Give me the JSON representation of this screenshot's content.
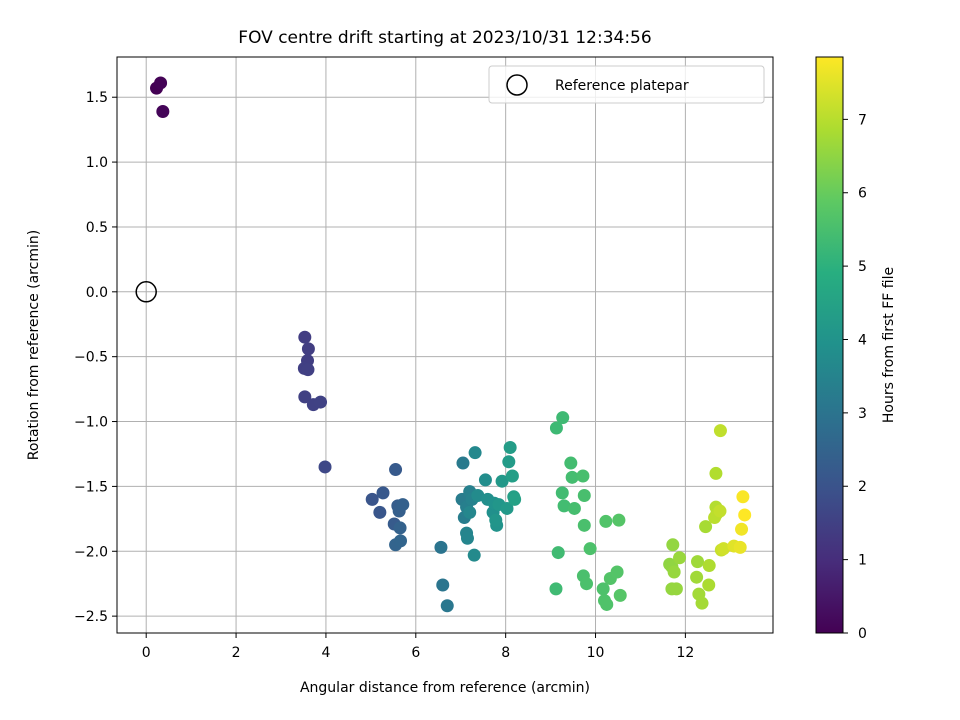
{
  "chart_data": {
    "type": "scatter",
    "title": "FOV centre drift starting at 2023/10/31 12:34:56",
    "xlabel": "Angular distance from reference (arcmin)",
    "ylabel": "Rotation from reference (arcmin)",
    "colorbar_label": "Hours from first FF file",
    "xlim": [
      -0.65,
      13.95
    ],
    "ylim": [
      -2.63,
      1.81
    ],
    "clim": [
      0,
      7.85
    ],
    "x_ticks": [
      0,
      2,
      4,
      6,
      8,
      10,
      12
    ],
    "y_ticks": [
      1.5,
      1.0,
      0.5,
      0.0,
      -0.5,
      -1.0,
      -1.5,
      -2.0,
      -2.5
    ],
    "colorbar_ticks": [
      0,
      1,
      2,
      3,
      4,
      5,
      6,
      7
    ],
    "grid": true,
    "legend": {
      "location": "upper-right",
      "entries": [
        {
          "label": "Reference platepar",
          "marker": "open-circle"
        }
      ]
    },
    "reference": {
      "x": 0.0,
      "y": 0.0
    },
    "colormap": "viridis",
    "series": [
      {
        "points": [
          {
            "x": 0.23,
            "y": 1.57,
            "c": 0.0
          },
          {
            "x": 0.32,
            "y": 1.61,
            "c": 0.05
          },
          {
            "x": 0.37,
            "y": 1.39,
            "c": 0.1
          },
          {
            "x": 3.53,
            "y": -0.35,
            "c": 1.4
          },
          {
            "x": 3.61,
            "y": -0.44,
            "c": 1.42
          },
          {
            "x": 3.59,
            "y": -0.53,
            "c": 1.44
          },
          {
            "x": 3.52,
            "y": -0.59,
            "c": 1.46
          },
          {
            "x": 3.6,
            "y": -0.6,
            "c": 1.48
          },
          {
            "x": 3.53,
            "y": -0.81,
            "c": 1.5
          },
          {
            "x": 3.72,
            "y": -0.87,
            "c": 1.52
          },
          {
            "x": 3.88,
            "y": -0.85,
            "c": 1.54
          },
          {
            "x": 3.98,
            "y": -1.35,
            "c": 1.7
          },
          {
            "x": 5.03,
            "y": -1.6,
            "c": 2.05
          },
          {
            "x": 5.2,
            "y": -1.7,
            "c": 2.1
          },
          {
            "x": 5.27,
            "y": -1.55,
            "c": 2.15
          },
          {
            "x": 5.55,
            "y": -1.37,
            "c": 2.2
          },
          {
            "x": 5.52,
            "y": -1.79,
            "c": 2.25
          },
          {
            "x": 5.6,
            "y": -1.65,
            "c": 2.3
          },
          {
            "x": 5.63,
            "y": -1.69,
            "c": 2.35
          },
          {
            "x": 5.71,
            "y": -1.64,
            "c": 2.4
          },
          {
            "x": 5.65,
            "y": -1.82,
            "c": 2.45
          },
          {
            "x": 5.55,
            "y": -1.95,
            "c": 2.5
          },
          {
            "x": 5.66,
            "y": -1.92,
            "c": 2.55
          },
          {
            "x": 6.56,
            "y": -1.97,
            "c": 3.0
          },
          {
            "x": 6.6,
            "y": -2.26,
            "c": 3.05
          },
          {
            "x": 6.7,
            "y": -2.42,
            "c": 3.1
          },
          {
            "x": 7.05,
            "y": -1.32,
            "c": 3.2
          },
          {
            "x": 7.03,
            "y": -1.6,
            "c": 3.25
          },
          {
            "x": 7.08,
            "y": -1.74,
            "c": 3.3
          },
          {
            "x": 7.13,
            "y": -1.66,
            "c": 3.35
          },
          {
            "x": 7.2,
            "y": -1.54,
            "c": 3.4
          },
          {
            "x": 7.25,
            "y": -1.6,
            "c": 3.45
          },
          {
            "x": 7.13,
            "y": -1.86,
            "c": 3.5
          },
          {
            "x": 7.15,
            "y": -1.9,
            "c": 3.55
          },
          {
            "x": 7.2,
            "y": -1.7,
            "c": 3.6
          },
          {
            "x": 7.32,
            "y": -1.24,
            "c": 3.65
          },
          {
            "x": 7.3,
            "y": -2.03,
            "c": 3.7
          },
          {
            "x": 7.38,
            "y": -1.57,
            "c": 3.75
          },
          {
            "x": 7.55,
            "y": -1.45,
            "c": 3.8
          },
          {
            "x": 7.6,
            "y": -1.6,
            "c": 3.85
          },
          {
            "x": 7.72,
            "y": -1.7,
            "c": 3.9
          },
          {
            "x": 7.75,
            "y": -1.63,
            "c": 3.95
          },
          {
            "x": 7.8,
            "y": -1.8,
            "c": 4.0
          },
          {
            "x": 7.78,
            "y": -1.76,
            "c": 4.05
          },
          {
            "x": 7.85,
            "y": -1.64,
            "c": 4.1
          },
          {
            "x": 7.92,
            "y": -1.46,
            "c": 4.15
          },
          {
            "x": 8.03,
            "y": -1.67,
            "c": 4.2
          },
          {
            "x": 8.07,
            "y": -1.31,
            "c": 4.25
          },
          {
            "x": 8.1,
            "y": -1.2,
            "c": 4.3
          },
          {
            "x": 8.15,
            "y": -1.42,
            "c": 4.35
          },
          {
            "x": 8.18,
            "y": -1.58,
            "c": 4.4
          },
          {
            "x": 8.2,
            "y": -1.6,
            "c": 4.45
          },
          {
            "x": 9.13,
            "y": -1.05,
            "c": 5.3
          },
          {
            "x": 9.27,
            "y": -0.97,
            "c": 5.32
          },
          {
            "x": 9.12,
            "y": -2.29,
            "c": 5.34
          },
          {
            "x": 9.17,
            "y": -2.01,
            "c": 5.36
          },
          {
            "x": 9.26,
            "y": -1.55,
            "c": 5.38
          },
          {
            "x": 9.3,
            "y": -1.65,
            "c": 5.4
          },
          {
            "x": 9.45,
            "y": -1.32,
            "c": 5.42
          },
          {
            "x": 9.48,
            "y": -1.43,
            "c": 5.44
          },
          {
            "x": 9.53,
            "y": -1.67,
            "c": 5.46
          },
          {
            "x": 9.72,
            "y": -1.42,
            "c": 5.48
          },
          {
            "x": 9.75,
            "y": -1.57,
            "c": 5.5
          },
          {
            "x": 9.75,
            "y": -1.8,
            "c": 5.52
          },
          {
            "x": 9.73,
            "y": -2.19,
            "c": 5.54
          },
          {
            "x": 9.8,
            "y": -2.25,
            "c": 5.56
          },
          {
            "x": 9.88,
            "y": -1.98,
            "c": 5.58
          },
          {
            "x": 10.17,
            "y": -2.29,
            "c": 5.6
          },
          {
            "x": 10.2,
            "y": -2.38,
            "c": 5.62
          },
          {
            "x": 10.25,
            "y": -2.41,
            "c": 5.64
          },
          {
            "x": 10.23,
            "y": -1.77,
            "c": 5.66
          },
          {
            "x": 10.33,
            "y": -2.21,
            "c": 5.68
          },
          {
            "x": 10.48,
            "y": -2.16,
            "c": 5.7
          },
          {
            "x": 10.52,
            "y": -1.76,
            "c": 5.72
          },
          {
            "x": 10.55,
            "y": -2.34,
            "c": 5.74
          },
          {
            "x": 11.65,
            "y": -2.1,
            "c": 6.5
          },
          {
            "x": 11.7,
            "y": -2.12,
            "c": 6.52
          },
          {
            "x": 11.72,
            "y": -1.95,
            "c": 6.54
          },
          {
            "x": 11.7,
            "y": -2.29,
            "c": 6.56
          },
          {
            "x": 11.8,
            "y": -2.29,
            "c": 6.58
          },
          {
            "x": 11.75,
            "y": -2.16,
            "c": 6.6
          },
          {
            "x": 11.87,
            "y": -2.05,
            "c": 6.62
          },
          {
            "x": 12.27,
            "y": -2.08,
            "c": 6.7
          },
          {
            "x": 12.25,
            "y": -2.2,
            "c": 6.72
          },
          {
            "x": 12.3,
            "y": -2.33,
            "c": 6.74
          },
          {
            "x": 12.37,
            "y": -2.4,
            "c": 6.76
          },
          {
            "x": 12.45,
            "y": -1.81,
            "c": 6.8
          },
          {
            "x": 12.52,
            "y": -2.26,
            "c": 6.84
          },
          {
            "x": 12.53,
            "y": -2.11,
            "c": 6.88
          },
          {
            "x": 12.68,
            "y": -1.4,
            "c": 6.92
          },
          {
            "x": 12.68,
            "y": -1.66,
            "c": 6.96
          },
          {
            "x": 12.7,
            "y": -1.71,
            "c": 7.0
          },
          {
            "x": 12.65,
            "y": -1.74,
            "c": 7.04
          },
          {
            "x": 12.78,
            "y": -1.07,
            "c": 7.1
          },
          {
            "x": 12.77,
            "y": -1.69,
            "c": 7.14
          },
          {
            "x": 12.8,
            "y": -1.99,
            "c": 7.2
          },
          {
            "x": 12.85,
            "y": -1.98,
            "c": 7.3
          },
          {
            "x": 13.08,
            "y": -1.96,
            "c": 7.5
          },
          {
            "x": 13.22,
            "y": -1.97,
            "c": 7.6
          },
          {
            "x": 13.25,
            "y": -1.83,
            "c": 7.7
          },
          {
            "x": 13.28,
            "y": -1.58,
            "c": 7.8
          },
          {
            "x": 13.32,
            "y": -1.72,
            "c": 7.85
          }
        ]
      }
    ]
  }
}
